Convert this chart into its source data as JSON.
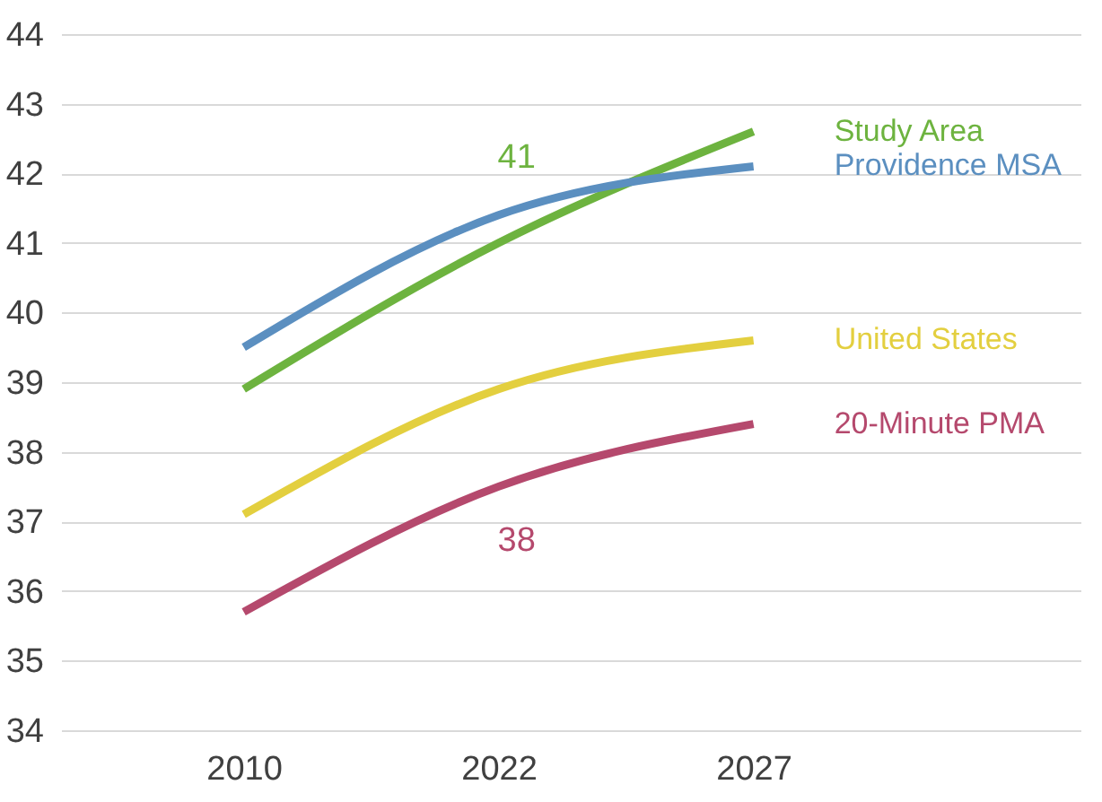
{
  "chart_data": {
    "type": "line",
    "categories": [
      "2010",
      "2022",
      "2027"
    ],
    "series": [
      {
        "name": "Study Area",
        "color": "#6db33f",
        "values": [
          38.9,
          41.0,
          42.6
        ]
      },
      {
        "name": "Providence MSA",
        "color": "#5b8fc0",
        "values": [
          39.5,
          41.4,
          42.1
        ]
      },
      {
        "name": "United States",
        "color": "#e3cf3f",
        "values": [
          37.1,
          38.9,
          39.6
        ]
      },
      {
        "name": "20-Minute PMA",
        "color": "#b5496d",
        "values": [
          35.7,
          37.5,
          38.4
        ]
      }
    ],
    "ylim": [
      34,
      44
    ],
    "yticks": [
      34,
      35,
      36,
      37,
      38,
      39,
      40,
      41,
      42,
      43,
      44
    ],
    "grid": "y",
    "annotations": [
      {
        "text": "41",
        "x": "2022",
        "y": 41
      },
      {
        "text": "38",
        "x": "2022",
        "y": 37.5
      }
    ]
  }
}
